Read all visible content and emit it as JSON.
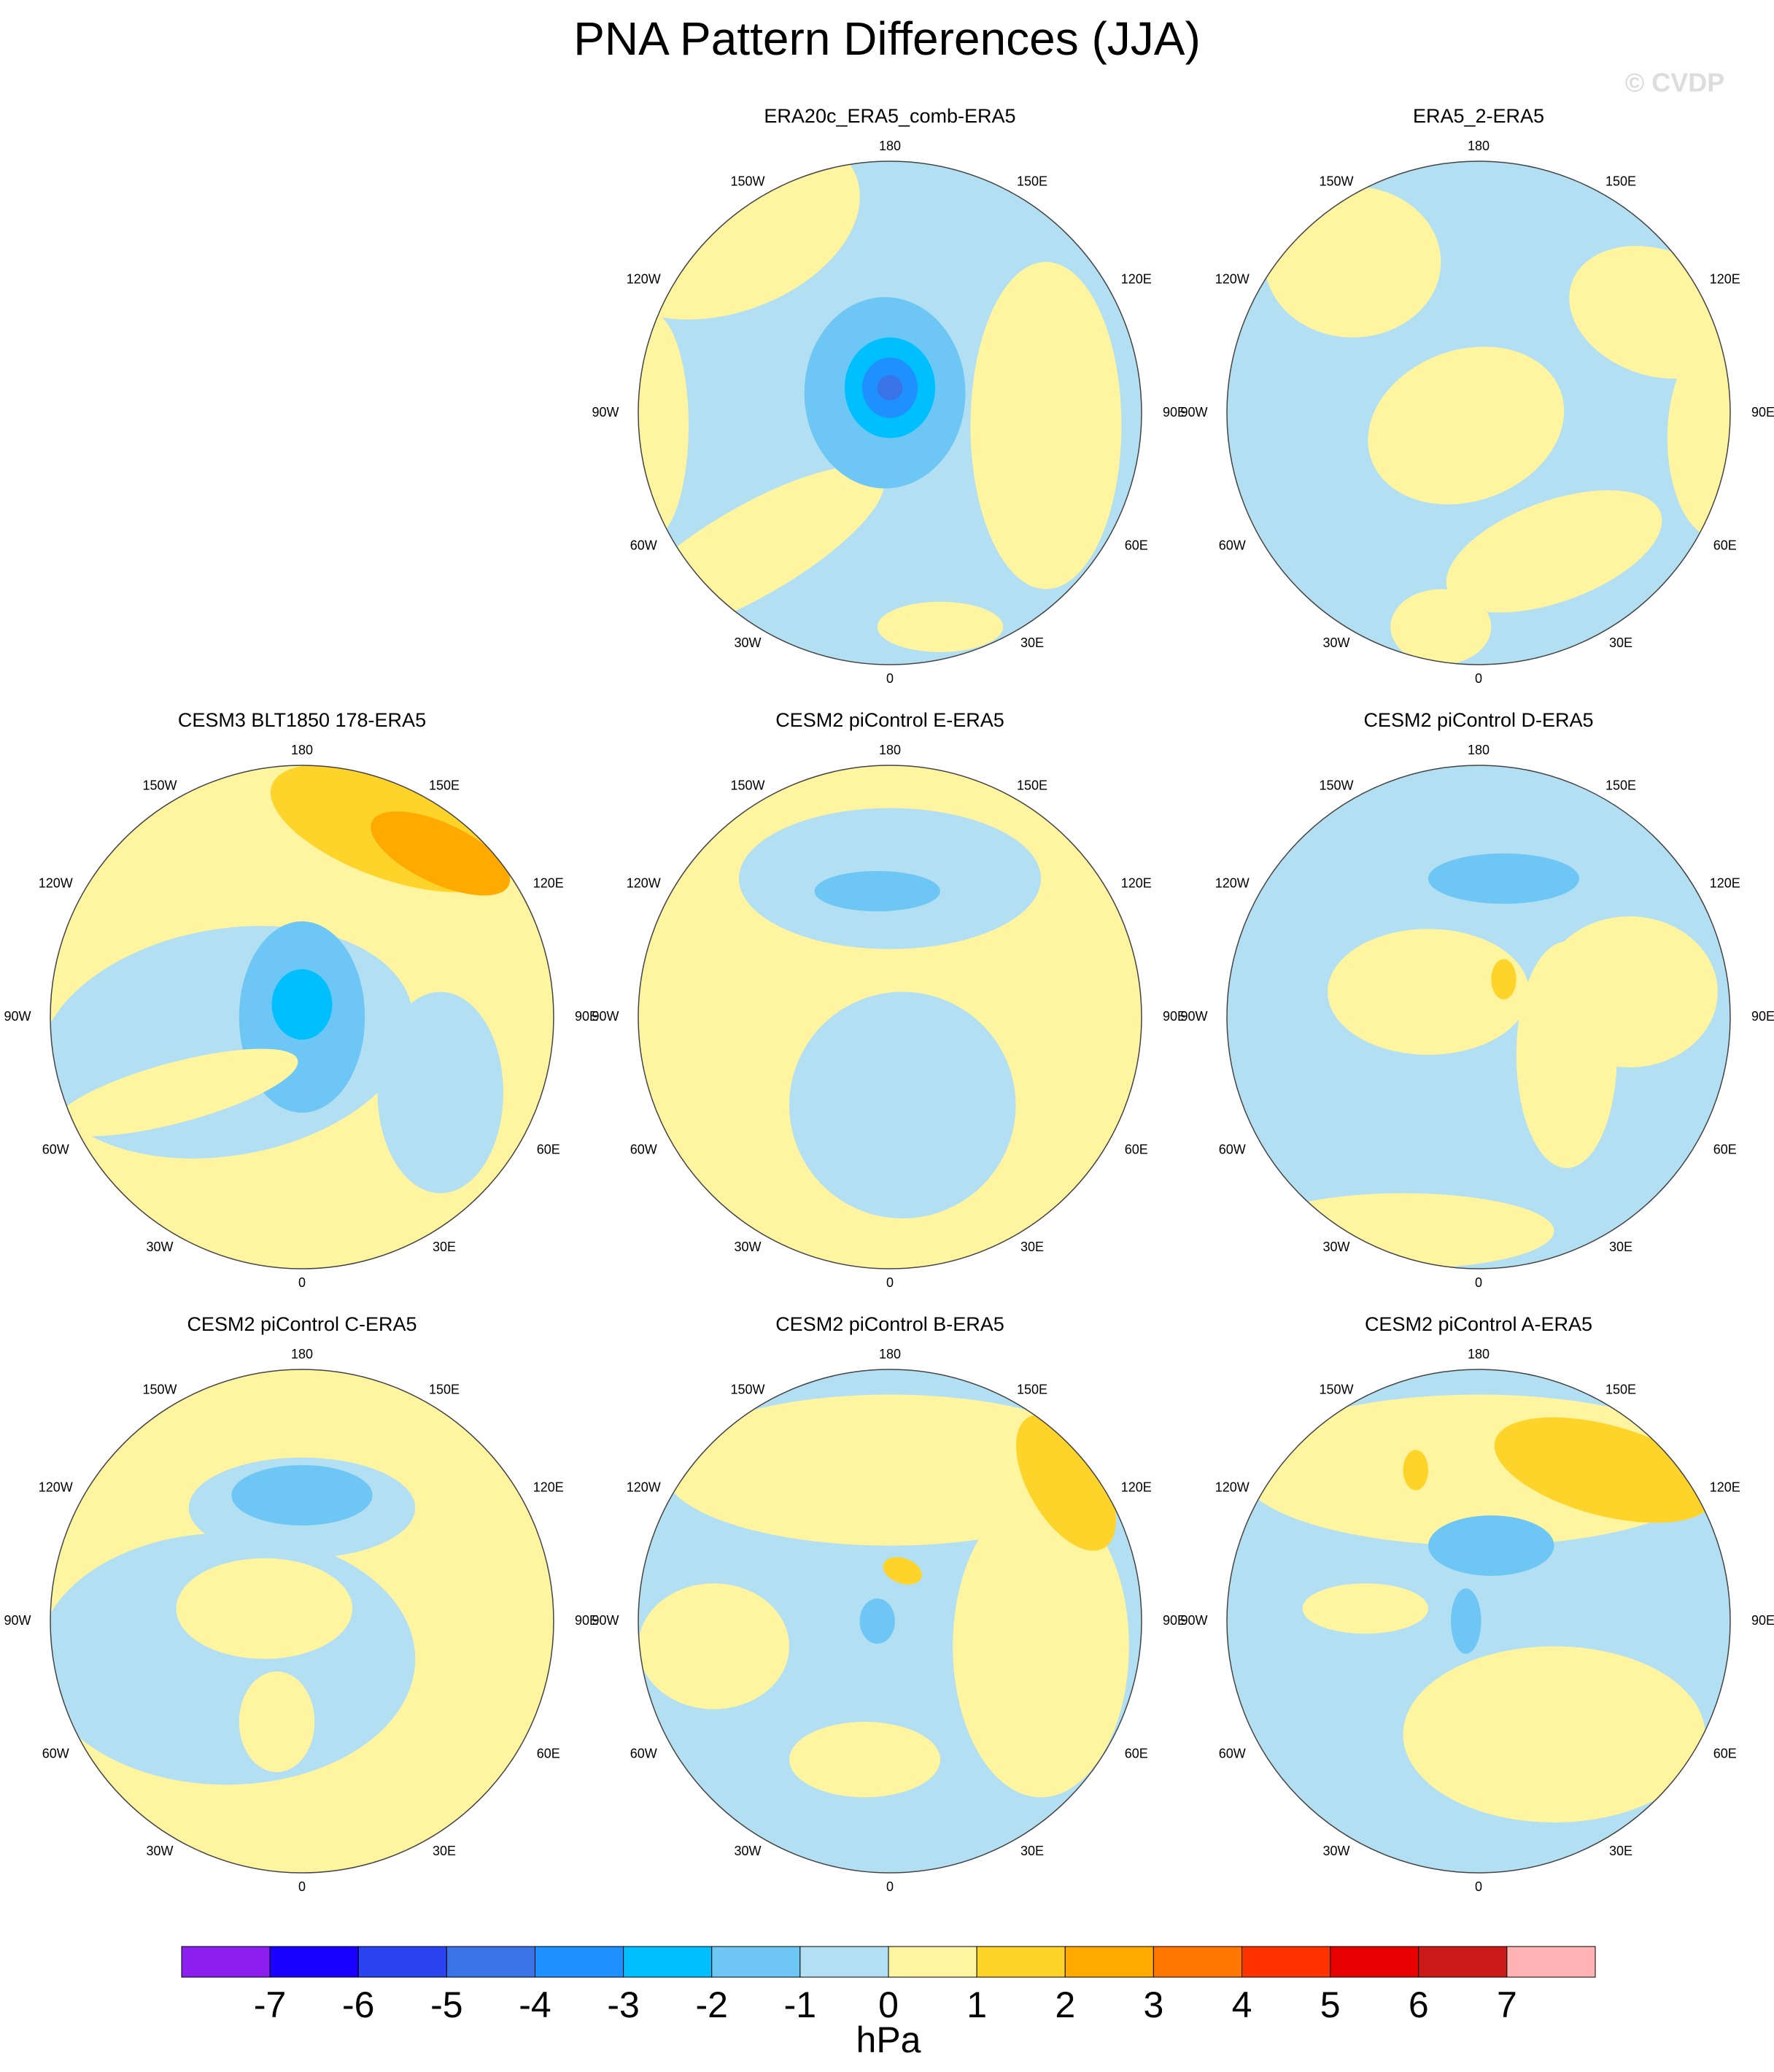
{
  "title": "PNA Pattern Differences (JJA)",
  "watermark": "© CVDP",
  "panels": [
    {
      "title": "ERA20c_ERA5_comb-ERA5",
      "lon_labels": [
        "180",
        "150E",
        "120E",
        "90E",
        "60E",
        "30E",
        "0",
        "30W",
        "60W",
        "90W",
        "120W",
        "150W"
      ]
    },
    {
      "title": "ERA5_2-ERA5",
      "lon_labels": [
        "180",
        "150E",
        "120E",
        "90E",
        "60E",
        "30E",
        "0",
        "30W",
        "60W",
        "90W",
        "120W",
        "150W"
      ]
    },
    {
      "title": "CESM3 BLT1850 178-ERA5",
      "lon_labels": [
        "180",
        "150E",
        "120E",
        "90E",
        "60E",
        "30E",
        "0",
        "30W",
        "60W",
        "90W",
        "120W",
        "150W"
      ]
    },
    {
      "title": "CESM2 piControl E-ERA5",
      "lon_labels": [
        "180",
        "150E",
        "120E",
        "90E",
        "60E",
        "30E",
        "0",
        "30W",
        "60W",
        "90W",
        "120W",
        "150W"
      ]
    },
    {
      "title": "CESM2 piControl D-ERA5",
      "lon_labels": [
        "180",
        "150E",
        "120E",
        "90E",
        "60E",
        "30E",
        "0",
        "30W",
        "60W",
        "90W",
        "120W",
        "150W"
      ]
    },
    {
      "title": "CESM2 piControl C-ERA5",
      "lon_labels": [
        "180",
        "150E",
        "120E",
        "90E",
        "60E",
        "30E",
        "0",
        "30W",
        "60W",
        "90W",
        "120W",
        "150W"
      ]
    },
    {
      "title": "CESM2 piControl B-ERA5",
      "lon_labels": [
        "180",
        "150E",
        "120E",
        "90E",
        "60E",
        "30E",
        "0",
        "30W",
        "60W",
        "90W",
        "120W",
        "150W"
      ]
    },
    {
      "title": "CESM2 piControl A-ERA5",
      "lon_labels": [
        "180",
        "150E",
        "120E",
        "90E",
        "60E",
        "30E",
        "0",
        "30W",
        "60W",
        "90W",
        "120W",
        "150W"
      ]
    }
  ],
  "colorbar": {
    "colors": [
      "#8c1ff0",
      "#1a00ff",
      "#2a45ef",
      "#3a72e8",
      "#1e90ff",
      "#00bfff",
      "#6ec6f5",
      "#b3dff2",
      "#fff5a0",
      "#ffd42a",
      "#ffaa00",
      "#ff7700",
      "#ff3300",
      "#e60000",
      "#cc1a1a",
      "#ffb3b3"
    ],
    "labels": [
      -7,
      -6,
      -5,
      -4,
      -3,
      -2,
      -1,
      0,
      1,
      2,
      3,
      4,
      5,
      6,
      7
    ],
    "unit": "hPa"
  }
}
